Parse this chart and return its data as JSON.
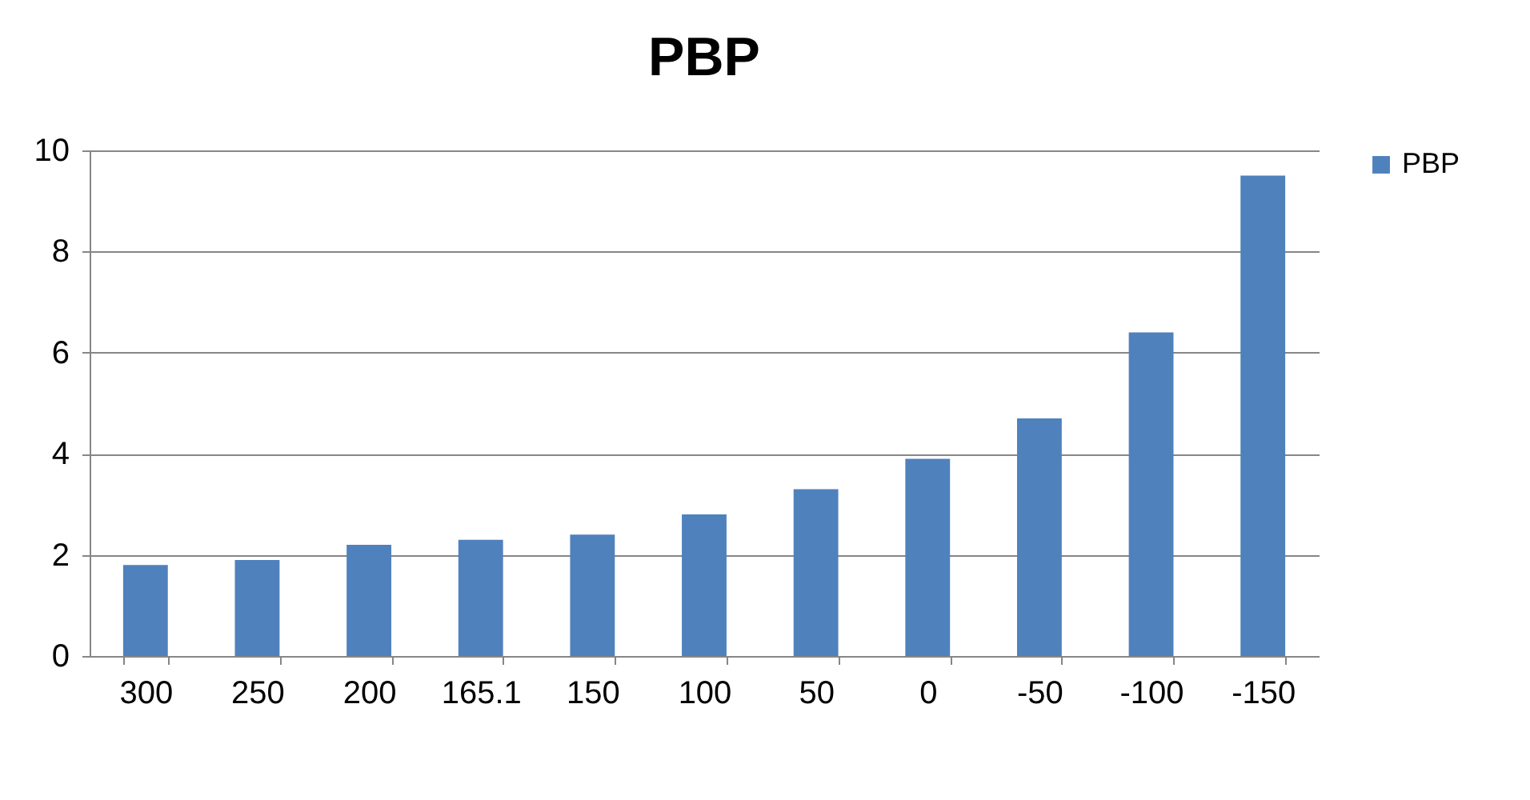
{
  "chart_data": {
    "type": "bar",
    "title": "PBP",
    "categories": [
      "300",
      "250",
      "200",
      "165.1",
      "150",
      "100",
      "50",
      "0",
      "-50",
      "-100",
      "-150"
    ],
    "series": [
      {
        "name": "PBP",
        "color": "#4f81bd",
        "values": [
          1.8,
          1.9,
          2.2,
          2.3,
          2.4,
          2.8,
          3.3,
          3.9,
          4.7,
          6.4,
          9.5
        ]
      }
    ],
    "ylim": [
      0,
      10
    ],
    "yticks": [
      0,
      2,
      4,
      6,
      8,
      10
    ],
    "grid": "y",
    "legend": "right"
  }
}
